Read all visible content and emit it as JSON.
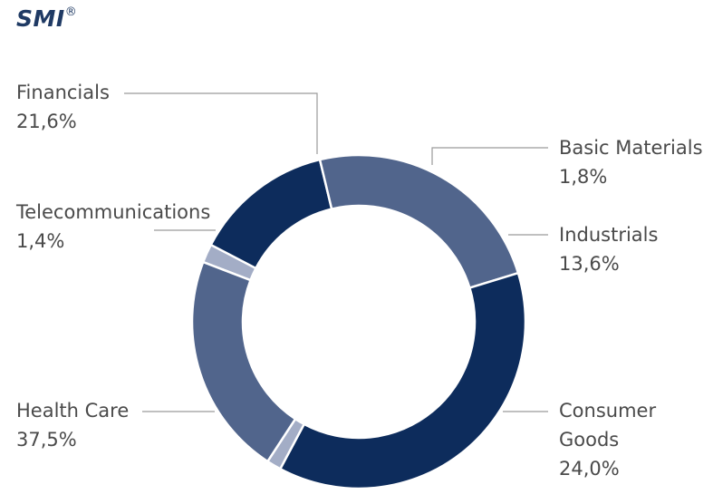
{
  "header": {
    "title": "SMI",
    "title_mark": "®"
  },
  "chart_data": {
    "type": "pie",
    "title": "SMI®",
    "donut": true,
    "legend": "callout labels",
    "slices": [
      {
        "label": "Basic Materials",
        "value": 1.8,
        "value_label": "1,8%",
        "color": "#a3adc6"
      },
      {
        "label": "Industrials",
        "value": 13.6,
        "value_label": "13,6%",
        "color": "#0d2c5c"
      },
      {
        "label": "Consumer Goods",
        "value": 24.0,
        "value_label": "24,0%",
        "color": "#51658c"
      },
      {
        "label": "Health Care",
        "value": 37.5,
        "value_label": "37,5%",
        "color": "#0d2c5c"
      },
      {
        "label": "Telecommunications",
        "value": 1.4,
        "value_label": "1,4%",
        "color": "#a3adc6"
      },
      {
        "label": "Financials",
        "value": 21.6,
        "value_label": "21,6%",
        "color": "#51658c"
      }
    ]
  },
  "labels": {
    "financials": {
      "name": "Financials",
      "pct": "21,6%"
    },
    "basic_materials": {
      "name": "Basic Materials",
      "pct": "1,8%"
    },
    "telecommunications": {
      "name": "Telecommunications",
      "pct": "1,4%"
    },
    "industrials": {
      "name": "Industrials",
      "pct": "13,6%"
    },
    "health_care": {
      "name": "Health Care",
      "pct": "37,5%"
    },
    "consumer_goods": {
      "name_line1": "Consumer",
      "name_line2": "Goods",
      "pct": "24,0%"
    }
  }
}
